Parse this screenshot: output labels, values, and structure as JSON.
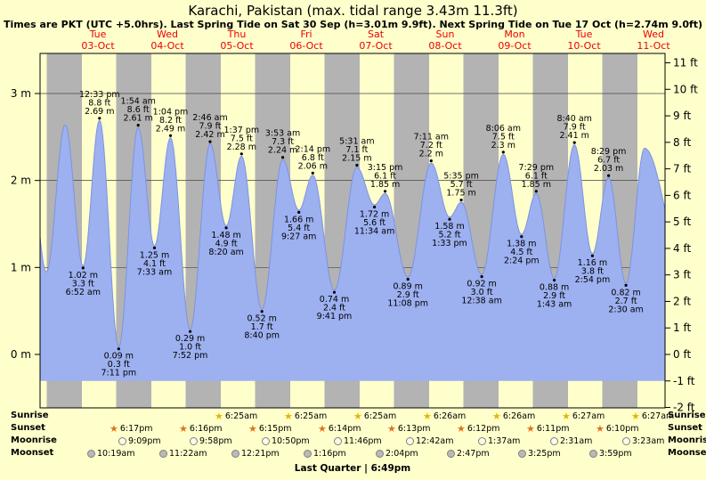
{
  "chart_data": {
    "type": "area",
    "title": "Karachi, Pakistan (max. tidal range 3.43m 11.3ft)",
    "subtitle": "Times are PKT (UTC +5.0hrs). Last Spring Tide on Sat 30 Sep (h=3.01m 9.9ft). Next Spring Tide on Tue 17 Oct (h=2.74m 9.0ft)",
    "days": [
      {
        "name": "Tue",
        "date": "03-Oct"
      },
      {
        "name": "Wed",
        "date": "04-Oct"
      },
      {
        "name": "Thu",
        "date": "05-Oct"
      },
      {
        "name": "Fri",
        "date": "06-Oct"
      },
      {
        "name": "Sat",
        "date": "07-Oct"
      },
      {
        "name": "Sun",
        "date": "08-Oct"
      },
      {
        "name": "Mon",
        "date": "09-Oct"
      },
      {
        "name": "Tue",
        "date": "10-Oct"
      },
      {
        "name": "Wed",
        "date": "11-Oct"
      }
    ],
    "y_left": {
      "unit": "m",
      "ticks": [
        3,
        2,
        1,
        0
      ]
    },
    "y_right": {
      "unit": "ft",
      "ticks": [
        11,
        10,
        9,
        8,
        7,
        6,
        5,
        4,
        3,
        2,
        1,
        0,
        -1,
        -2
      ]
    },
    "night": {
      "sunset_hour": 18.3,
      "sunrise_hour": 6.45
    },
    "tides": [
      {
        "type": "low",
        "day": 0,
        "time": "6:52 am",
        "height_m": 1.02,
        "label_m": "1.02 m",
        "label_ft": "3.3 ft"
      },
      {
        "type": "high",
        "day": 0,
        "time": "12:33 pm",
        "height_m": 2.69,
        "label_m": "2.69 m",
        "label_ft": "8.8 ft"
      },
      {
        "type": "low",
        "day": 0,
        "time": "7:11 pm",
        "height_m": 0.09,
        "label_m": "0.09 m",
        "label_ft": "0.3 ft"
      },
      {
        "type": "high",
        "day": 1,
        "time": "1:54 am",
        "height_m": 2.61,
        "label_m": "2.61 m",
        "label_ft": "8.6 ft"
      },
      {
        "type": "low",
        "day": 1,
        "time": "7:33 am",
        "height_m": 1.25,
        "label_m": "1.25 m",
        "label_ft": "4.1 ft"
      },
      {
        "type": "high",
        "day": 1,
        "time": "1:04 pm",
        "height_m": 2.49,
        "label_m": "2.49 m",
        "label_ft": "8.2 ft"
      },
      {
        "type": "low",
        "day": 1,
        "time": "7:52 pm",
        "height_m": 0.29,
        "label_m": "0.29 m",
        "label_ft": "1.0 ft"
      },
      {
        "type": "high",
        "day": 2,
        "time": "2:46 am",
        "height_m": 2.42,
        "label_m": "2.42 m",
        "label_ft": "7.9 ft"
      },
      {
        "type": "low",
        "day": 2,
        "time": "8:20 am",
        "height_m": 1.48,
        "label_m": "1.48 m",
        "label_ft": "4.9 ft"
      },
      {
        "type": "high",
        "day": 2,
        "time": "1:37 pm",
        "height_m": 2.28,
        "label_m": "2.28 m",
        "label_ft": "7.5 ft"
      },
      {
        "type": "low",
        "day": 2,
        "time": "8:40 pm",
        "height_m": 0.52,
        "label_m": "0.52 m",
        "label_ft": "1.7 ft"
      },
      {
        "type": "high",
        "day": 3,
        "time": "3:53 am",
        "height_m": 2.24,
        "label_m": "2.24 m",
        "label_ft": "7.3 ft"
      },
      {
        "type": "low",
        "day": 3,
        "time": "9:27 am",
        "height_m": 1.66,
        "label_m": "1.66 m",
        "label_ft": "5.4 ft"
      },
      {
        "type": "high",
        "day": 3,
        "time": "2:14 pm",
        "height_m": 2.06,
        "label_m": "2.06 m",
        "label_ft": "6.8 ft"
      },
      {
        "type": "low",
        "day": 3,
        "time": "9:41 pm",
        "height_m": 0.74,
        "label_m": "0.74 m",
        "label_ft": "2.4 ft"
      },
      {
        "type": "high",
        "day": 4,
        "time": "5:31 am",
        "height_m": 2.15,
        "label_m": "2.15 m",
        "label_ft": "7.1 ft"
      },
      {
        "type": "low",
        "day": 4,
        "time": "11:34 am",
        "height_m": 1.72,
        "label_m": "1.72 m",
        "label_ft": "5.6 ft"
      },
      {
        "type": "high",
        "day": 4,
        "time": "3:15 pm",
        "height_m": 1.85,
        "label_m": "1.85 m",
        "label_ft": "6.1 ft"
      },
      {
        "type": "low",
        "day": 4,
        "time": "11:08 pm",
        "height_m": 0.89,
        "label_m": "0.89 m",
        "label_ft": "2.9 ft"
      },
      {
        "type": "high",
        "day": 5,
        "time": "7:11 am",
        "height_m": 2.2,
        "label_m": "2.2 m",
        "label_ft": "7.2 ft"
      },
      {
        "type": "low",
        "day": 5,
        "time": "1:33 pm",
        "height_m": 1.58,
        "label_m": "1.58 m",
        "label_ft": "5.2 ft"
      },
      {
        "type": "high",
        "day": 5,
        "time": "5:35 pm",
        "height_m": 1.75,
        "label_m": "1.75 m",
        "label_ft": "5.7 ft"
      },
      {
        "type": "low",
        "day": 6,
        "time": "12:38 am",
        "height_m": 0.92,
        "label_m": "0.92 m",
        "label_ft": "3.0 ft"
      },
      {
        "type": "high",
        "day": 6,
        "time": "8:06 am",
        "height_m": 2.3,
        "label_m": "2.3 m",
        "label_ft": "7.5 ft"
      },
      {
        "type": "low",
        "day": 6,
        "time": "2:24 pm",
        "height_m": 1.38,
        "label_m": "1.38 m",
        "label_ft": "4.5 ft"
      },
      {
        "type": "high",
        "day": 6,
        "time": "7:29 pm",
        "height_m": 1.85,
        "label_m": "1.85 m",
        "label_ft": "6.1 ft"
      },
      {
        "type": "low",
        "day": 7,
        "time": "1:43 am",
        "height_m": 0.88,
        "label_m": "0.88 m",
        "label_ft": "2.9 ft"
      },
      {
        "type": "high",
        "day": 7,
        "time": "8:40 am",
        "height_m": 2.41,
        "label_m": "2.41 m",
        "label_ft": "7.9 ft"
      },
      {
        "type": "low",
        "day": 7,
        "time": "2:54 pm",
        "height_m": 1.16,
        "label_m": "1.16 m",
        "label_ft": "3.8 ft"
      },
      {
        "type": "high",
        "day": 7,
        "time": "8:29 pm",
        "height_m": 2.03,
        "label_m": "2.03 m",
        "label_ft": "6.7 ft"
      },
      {
        "type": "low",
        "day": 8,
        "time": "2:30 am",
        "height_m": 0.82,
        "label_m": "0.82 m",
        "label_ft": "2.7 ft"
      }
    ],
    "curve_edges": [
      {
        "t": -0.5,
        "height_m": 2.4
      },
      {
        "t": -0.242,
        "height_m": 0.95
      },
      {
        "t": 0.028,
        "height_m": 2.64
      },
      {
        "t": 8.372,
        "height_m": 2.37
      },
      {
        "t": 8.95,
        "height_m": 1.0
      }
    ],
    "colors": {
      "page_bg": "#ffffcc",
      "day_band": "#ffffcc",
      "night_band": "#b3b3b3",
      "tide_fill": "#9db0f0",
      "tide_stroke": "#7d93e0",
      "date_label": "#ee0000",
      "sunrise_star": "#e8b400",
      "sunset_star": "#e2711d",
      "moonrise_fill": "#fcfce8",
      "moonset_fill": "#b9b9b9"
    }
  },
  "astro": {
    "rows": [
      {
        "key": "sunrise",
        "label": "Sunrise",
        "icon": "sunrise-star-icon",
        "entries": [
          {
            "day": 2,
            "time": "6:25am"
          },
          {
            "day": 3,
            "time": "6:25am"
          },
          {
            "day": 4,
            "time": "6:25am"
          },
          {
            "day": 5,
            "time": "6:26am"
          },
          {
            "day": 6,
            "time": "6:26am"
          },
          {
            "day": 7,
            "time": "6:27am"
          },
          {
            "day": 8,
            "time": "6:27am"
          }
        ]
      },
      {
        "key": "sunset",
        "label": "Sunset",
        "icon": "sunset-star-icon",
        "entries": [
          {
            "day": 0,
            "time": "6:17pm"
          },
          {
            "day": 1,
            "time": "6:16pm"
          },
          {
            "day": 2,
            "time": "6:15pm"
          },
          {
            "day": 3,
            "time": "6:14pm"
          },
          {
            "day": 4,
            "time": "6:13pm"
          },
          {
            "day": 5,
            "time": "6:12pm"
          },
          {
            "day": 6,
            "time": "6:11pm"
          },
          {
            "day": 7,
            "time": "6:10pm"
          }
        ]
      },
      {
        "key": "moonrise",
        "label": "Moonrise",
        "icon": "moonrise-icon",
        "entries": [
          {
            "day": 0,
            "time": "9:09pm"
          },
          {
            "day": 1,
            "time": "9:58pm"
          },
          {
            "day": 2,
            "time": "10:50pm"
          },
          {
            "day": 3,
            "time": "11:46pm"
          },
          {
            "day": 5,
            "time": "12:42am"
          },
          {
            "day": 6,
            "time": "1:37am"
          },
          {
            "day": 7,
            "time": "2:31am"
          },
          {
            "day": 8,
            "time": "3:23am"
          }
        ]
      },
      {
        "key": "moonset",
        "label": "Moonset",
        "icon": "moonset-icon",
        "entries": [
          {
            "day": 0,
            "time": "10:19am"
          },
          {
            "day": 1,
            "time": "11:22am"
          },
          {
            "day": 2,
            "time": "12:21pm"
          },
          {
            "day": 3,
            "time": "1:16pm"
          },
          {
            "day": 4,
            "time": "2:04pm"
          },
          {
            "day": 5,
            "time": "2:47pm"
          },
          {
            "day": 6,
            "time": "3:25pm"
          },
          {
            "day": 7,
            "time": "3:59pm"
          }
        ]
      }
    ],
    "footer": "Last Quarter | 6:49pm"
  }
}
